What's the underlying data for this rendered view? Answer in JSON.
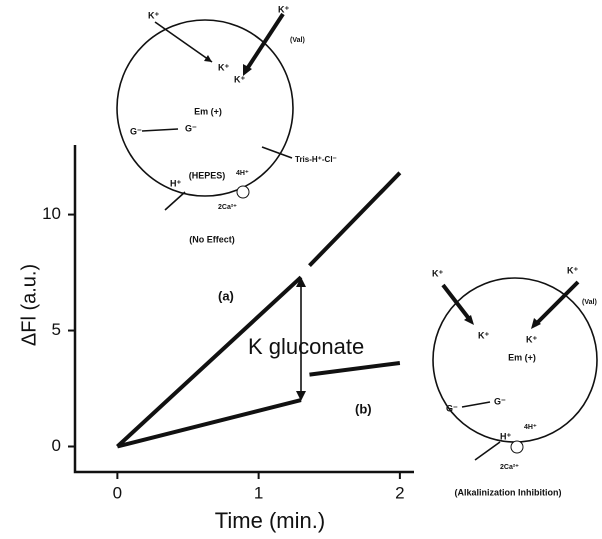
{
  "chart_data": {
    "type": "line",
    "x_label": "Time (min.)",
    "y_label": "ΔFl (a.u.)",
    "x": [
      0,
      1.3,
      1.33,
      1.36,
      2.0
    ],
    "series": [
      {
        "name": "(a)",
        "color": "#111111",
        "values": [
          0,
          7.3,
          null,
          7.8,
          11.8
        ]
      },
      {
        "name": "(b)",
        "color": "#111111",
        "values": [
          0,
          2.0,
          null,
          3.1,
          3.6
        ]
      }
    ],
    "xlim": [
      -0.3,
      2.1
    ],
    "ylim": [
      -1.1,
      13
    ],
    "xticks": [
      0,
      1,
      2
    ],
    "yticks": [
      0,
      5,
      10
    ],
    "annotations": [
      "K gluconate"
    ]
  },
  "diagrams": [
    {
      "labels": [
        "K⁺",
        "K⁺",
        "K⁺",
        "K⁺",
        "(Val)",
        "Em (+)",
        "G⁻",
        "G⁻",
        "Tris-H⁺-Cl⁻",
        "H⁺",
        "(HEPES)",
        "4H⁺",
        "2Ca²⁺"
      ],
      "caption": "(No Effect)"
    },
    {
      "labels": [
        "K⁺",
        "K⁺",
        "K⁺",
        "K⁺",
        "(Val)",
        "Em (+)",
        "G⁻",
        "G⁻",
        "H⁺",
        "4H⁺",
        "2Ca²⁺"
      ],
      "caption": "(Alkalinization Inhibition)"
    }
  ]
}
